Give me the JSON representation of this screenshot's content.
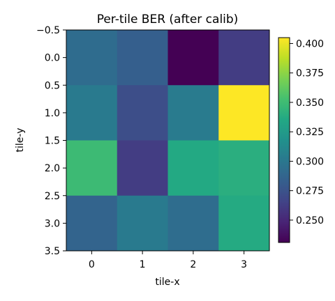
{
  "chart_data": {
    "type": "heatmap",
    "title": "Per-tile BER (after calib)",
    "xlabel": "tile-x",
    "ylabel": "tile-y",
    "x_ticks": [
      "0",
      "1",
      "2",
      "3"
    ],
    "y_ticks": [
      "−0.5",
      "0.0",
      "0.5",
      "1.0",
      "1.5",
      "2.0",
      "2.5",
      "3.0",
      "3.5"
    ],
    "xlim": [
      -0.5,
      3.5
    ],
    "ylim": [
      3.5,
      -0.5
    ],
    "colormap": "viridis",
    "color_range": [
      0.231,
      0.405
    ],
    "colorbar_ticks": [
      "0.250",
      "0.275",
      "0.300",
      "0.325",
      "0.350",
      "0.375",
      "0.400"
    ],
    "values": [
      [
        0.292,
        0.283,
        0.231,
        0.262
      ],
      [
        0.302,
        0.272,
        0.303,
        0.405
      ],
      [
        0.349,
        0.262,
        0.336,
        0.34
      ],
      [
        0.287,
        0.302,
        0.293,
        0.337
      ]
    ]
  }
}
